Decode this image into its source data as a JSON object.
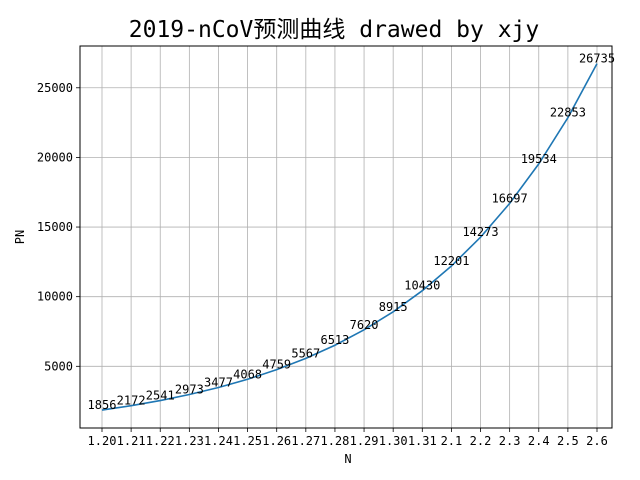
{
  "chart_data": {
    "type": "line",
    "title": "2019-nCoV预测曲线 drawed by xjy",
    "xlabel": "N",
    "ylabel": "PN",
    "categories": [
      "1.20",
      "1.21",
      "1.22",
      "1.23",
      "1.24",
      "1.25",
      "1.26",
      "1.27",
      "1.28",
      "1.29",
      "1.30",
      "1.31",
      "2.1",
      "2.2",
      "2.3",
      "2.4",
      "2.5",
      "2.6"
    ],
    "values": [
      1856,
      2172,
      2541,
      2973,
      3477,
      4068,
      4759,
      5567,
      6513,
      7620,
      8915,
      10430,
      12201,
      14273,
      16697,
      19534,
      22853,
      26735
    ],
    "yticks": [
      5000,
      10000,
      15000,
      20000,
      25000
    ],
    "ylim": [
      570,
      28000
    ],
    "grid": true,
    "line_color": "#1f77b4"
  }
}
